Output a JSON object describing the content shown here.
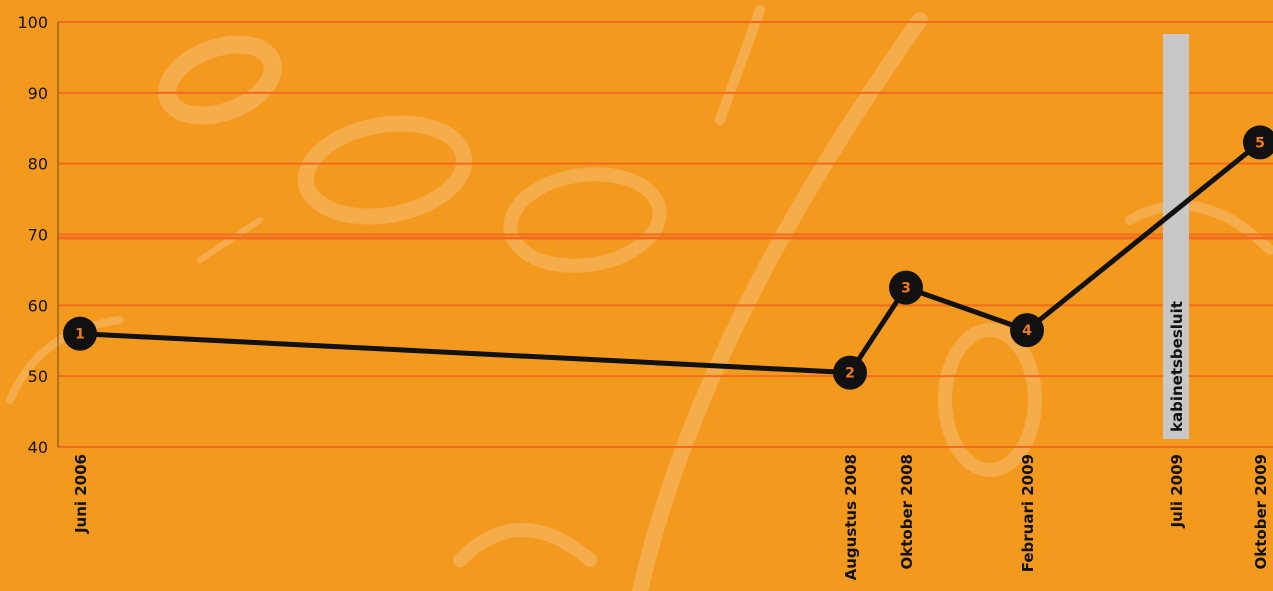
{
  "chart_data": {
    "type": "line",
    "title": "",
    "xlabel": "",
    "ylabel": "",
    "ylim": [
      40,
      100
    ],
    "y_ticks": [
      40,
      50,
      60,
      70,
      80,
      90,
      100
    ],
    "grid": true,
    "categories": [
      "Juni 2006",
      "Augustus 2008",
      "Oktober 2008",
      "Februari 2009",
      "Juli 2009",
      "Oktober 2009"
    ],
    "points": [
      {
        "label": "1",
        "x": "Juni 2006",
        "y": 56
      },
      {
        "label": "2",
        "x": "Augustus 2008",
        "y": 50.5
      },
      {
        "label": "3",
        "x": "Oktober 2008",
        "y": 62.5
      },
      {
        "label": "4",
        "x": "Februari 2009",
        "y": 56.5
      },
      {
        "label": "5",
        "x": "Oktober 2009",
        "y": 83
      }
    ],
    "reference_line": {
      "y": 69.5
    },
    "annotation_band": {
      "x": "Juli 2009",
      "label": "kabinetsbesluit"
    },
    "colors": {
      "background": "#f39a1e",
      "grid": "#f26b1c",
      "line": "#111111",
      "marker": "#111111",
      "marker_label": "#f47a1e",
      "band": "#c8c8c8"
    }
  }
}
